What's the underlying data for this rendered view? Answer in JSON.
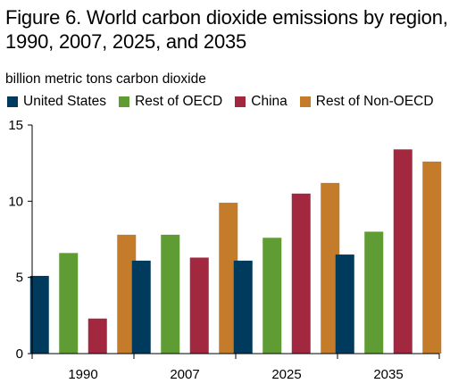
{
  "chart_data": {
    "type": "bar",
    "title_lines": [
      "Figure 6. World carbon dioxide emissions by region,",
      "1990, 2007, 2025, and 2035"
    ],
    "ylabel": "billion metric tons carbon dioxide",
    "categories": [
      "1990",
      "2007",
      "2025",
      "2035"
    ],
    "ylim": [
      0,
      15
    ],
    "yticks": [
      "0",
      "5",
      "10",
      "15"
    ],
    "legend_position": "top",
    "series": [
      {
        "name": "United States",
        "color": "#003a5d",
        "values": [
          5.1,
          6.1,
          6.1,
          6.5
        ]
      },
      {
        "name": "Rest of OECD",
        "color": "#5f9c33",
        "values": [
          6.6,
          7.8,
          7.6,
          8.0
        ]
      },
      {
        "name": "China",
        "color": "#a1283f",
        "values": [
          2.3,
          6.3,
          10.5,
          13.4
        ]
      },
      {
        "name": "Rest of Non-OECD",
        "color": "#c47b2a",
        "values": [
          7.8,
          9.9,
          11.2,
          12.6
        ]
      }
    ]
  }
}
